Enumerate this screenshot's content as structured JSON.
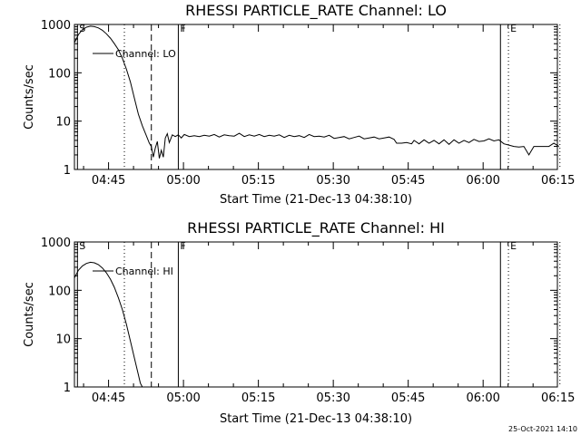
{
  "timestamp": "25-Oct-2021 14:10",
  "chart_data": [
    {
      "type": "line",
      "title": "RHESSI PARTICLE_RATE Channel: LO",
      "xlabel": "Start Time (21-Dec-13 04:38:10)",
      "ylabel": "Counts/sec",
      "yscale": "log",
      "ylim": [
        1,
        1000
      ],
      "xlim_min": [
        0,
        96.7
      ],
      "x_ticks": [
        {
          "at": 6.83,
          "label": "04:45"
        },
        {
          "at": 21.83,
          "label": "05:00"
        },
        {
          "at": 36.83,
          "label": "05:15"
        },
        {
          "at": 51.83,
          "label": "05:30"
        },
        {
          "at": 66.83,
          "label": "05:45"
        },
        {
          "at": 81.83,
          "label": "06:00"
        },
        {
          "at": 96.83,
          "label": "06:15"
        }
      ],
      "y_ticks": [
        {
          "at": 1,
          "label": "1"
        },
        {
          "at": 10,
          "label": "10"
        },
        {
          "at": 100,
          "label": "100"
        },
        {
          "at": 1000,
          "label": "1000"
        }
      ],
      "legend": "Channel: LO",
      "markers": [
        {
          "at": 0.6,
          "label": "S",
          "style": "solid"
        },
        {
          "at": 10.0,
          "label": "",
          "style": "dotted"
        },
        {
          "at": 15.4,
          "label": "",
          "style": "dashed"
        },
        {
          "at": 20.8,
          "label": "F",
          "style": "solid"
        },
        {
          "at": 85.3,
          "label": "",
          "style": "solid"
        },
        {
          "at": 86.9,
          "label": "E",
          "style": "dotted"
        },
        {
          "at": 97.2,
          "label": "",
          "style": "dotted"
        }
      ],
      "series": [
        {
          "name": "Channel: LO",
          "x": [
            0.0,
            0.8,
            1.6,
            2.4,
            3.2,
            4.0,
            4.8,
            5.6,
            6.4,
            7.2,
            8.0,
            8.8,
            9.6,
            10.4,
            11.2,
            12.0,
            12.8,
            13.6,
            14.4,
            15.0,
            15.4,
            15.8,
            16.2,
            16.6,
            17.0,
            17.4,
            17.8,
            18.2,
            18.6,
            19.0,
            19.6,
            20.2,
            20.8,
            21.4,
            22.0,
            23.0,
            24.0,
            25.0,
            26.0,
            27.0,
            28.0,
            29.0,
            30.0,
            31.0,
            32.0,
            33.0,
            34.0,
            35.0,
            36.0,
            37.0,
            38.0,
            39.0,
            40.0,
            41.0,
            42.0,
            43.0,
            44.0,
            45.0,
            46.0,
            47.0,
            48.0,
            49.0,
            50.0,
            51.0,
            52.0,
            53.0,
            54.0,
            55.0,
            56.0,
            57.0,
            58.0,
            59.0,
            60.0,
            61.0,
            62.0,
            63.0,
            64.0,
            64.5,
            65.5,
            66.5,
            67.5,
            68.0,
            69.0,
            70.0,
            71.0,
            72.0,
            73.0,
            74.0,
            75.0,
            76.0,
            77.0,
            78.0,
            79.0,
            80.0,
            81.0,
            82.0,
            83.0,
            84.0,
            85.0,
            86.0,
            87.0,
            88.0,
            89.0,
            90.0,
            91.0,
            92.0,
            93.0,
            94.0,
            95.0,
            96.0,
            97.0
          ],
          "y": [
            420,
            620,
            780,
            880,
            920,
            900,
            850,
            760,
            640,
            520,
            400,
            300,
            200,
            120,
            65,
            30,
            14,
            8,
            5,
            3.5,
            3.0,
            1.8,
            2.8,
            3.8,
            1.7,
            2.5,
            1.8,
            4.5,
            5.5,
            3.6,
            5.2,
            4.8,
            5.2,
            4.5,
            5.3,
            4.8,
            5.0,
            4.8,
            5.1,
            4.9,
            5.3,
            4.7,
            5.2,
            5.0,
            4.9,
            5.6,
            4.8,
            5.2,
            4.9,
            5.3,
            4.8,
            5.1,
            4.9,
            5.2,
            4.6,
            5.1,
            4.8,
            5.0,
            4.6,
            5.3,
            4.8,
            4.9,
            4.7,
            5.1,
            4.4,
            4.6,
            4.8,
            4.3,
            4.6,
            4.9,
            4.3,
            4.5,
            4.7,
            4.3,
            4.5,
            4.7,
            4.2,
            3.5,
            3.5,
            3.6,
            3.4,
            4.0,
            3.4,
            4.1,
            3.5,
            4.0,
            3.4,
            4.1,
            3.3,
            4.1,
            3.5,
            4.0,
            3.6,
            4.2,
            3.8,
            3.9,
            4.3,
            3.9,
            4.1,
            3.4,
            3.2,
            3.0,
            2.9,
            3.0,
            2.0,
            3.0,
            3.0,
            3.0,
            3.0,
            3.5,
            3.0
          ]
        }
      ]
    },
    {
      "type": "line",
      "title": "RHESSI PARTICLE_RATE Channel: HI",
      "xlabel": "Start Time (21-Dec-13 04:38:10)",
      "ylabel": "Counts/sec",
      "yscale": "log",
      "ylim": [
        1,
        1000
      ],
      "xlim_min": [
        0,
        96.7
      ],
      "x_ticks": [
        {
          "at": 6.83,
          "label": "04:45"
        },
        {
          "at": 21.83,
          "label": "05:00"
        },
        {
          "at": 36.83,
          "label": "05:15"
        },
        {
          "at": 51.83,
          "label": "05:30"
        },
        {
          "at": 66.83,
          "label": "05:45"
        },
        {
          "at": 81.83,
          "label": "06:00"
        },
        {
          "at": 96.83,
          "label": "06:15"
        }
      ],
      "y_ticks": [
        {
          "at": 1,
          "label": "1"
        },
        {
          "at": 10,
          "label": "10"
        },
        {
          "at": 100,
          "label": "100"
        },
        {
          "at": 1000,
          "label": "1000"
        }
      ],
      "legend": "Channel: HI",
      "markers": [
        {
          "at": 0.6,
          "label": "S",
          "style": "solid"
        },
        {
          "at": 10.0,
          "label": "",
          "style": "dotted"
        },
        {
          "at": 15.4,
          "label": "",
          "style": "dashed"
        },
        {
          "at": 20.8,
          "label": "F",
          "style": "solid"
        },
        {
          "at": 85.3,
          "label": "",
          "style": "solid"
        },
        {
          "at": 86.9,
          "label": "E",
          "style": "dotted"
        },
        {
          "at": 97.2,
          "label": "",
          "style": "dotted"
        }
      ],
      "series": [
        {
          "name": "Channel: HI",
          "x": [
            0.0,
            0.8,
            1.6,
            2.4,
            3.2,
            4.0,
            4.8,
            5.6,
            6.4,
            7.2,
            8.0,
            8.8,
            9.6,
            10.4,
            11.2,
            12.0,
            12.8,
            13.2,
            13.6
          ],
          "y": [
            180,
            260,
            320,
            360,
            380,
            370,
            340,
            290,
            230,
            170,
            115,
            70,
            40,
            20,
            9,
            4,
            1.8,
            1.2,
            1.0
          ]
        }
      ]
    }
  ]
}
